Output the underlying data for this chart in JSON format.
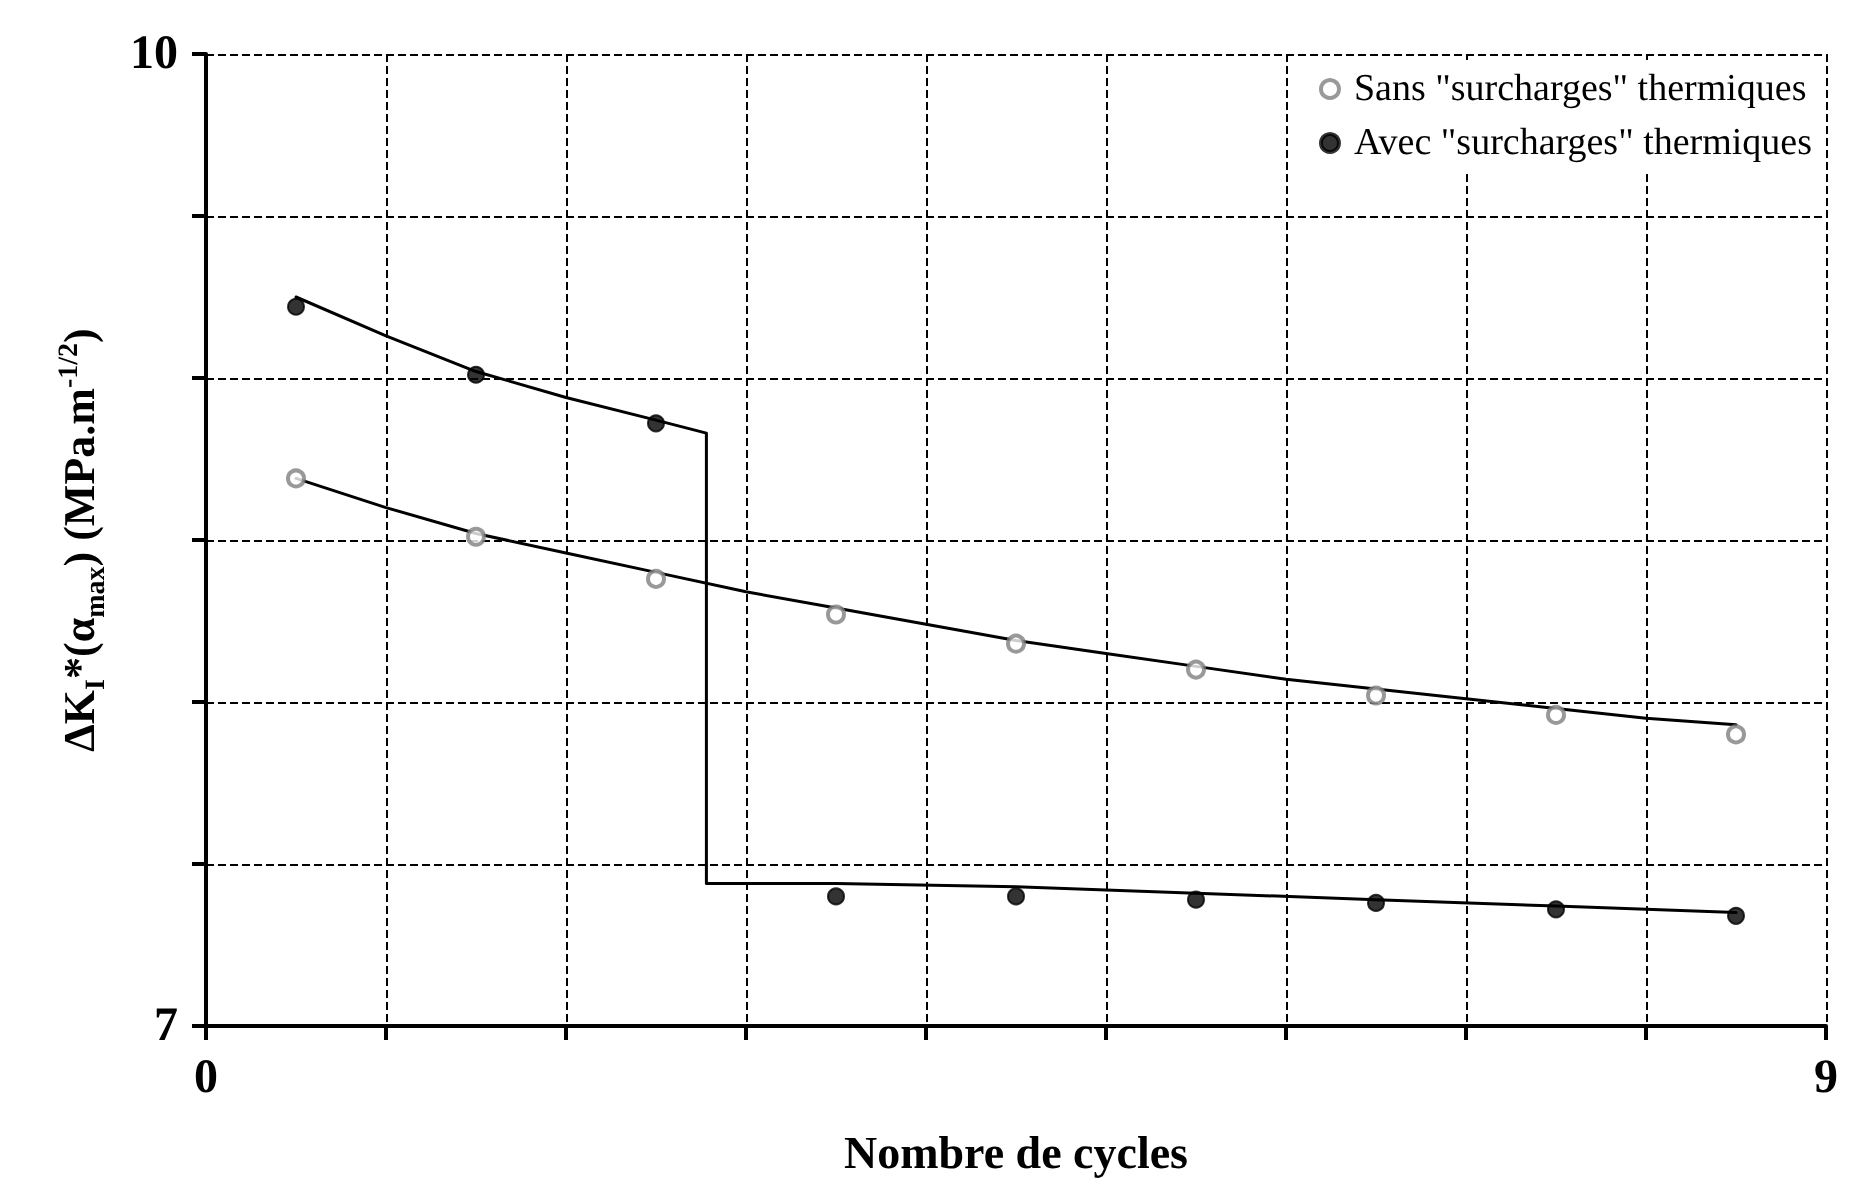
{
  "chart_data": {
    "type": "scatter",
    "xlabel": "Nombre de cycles",
    "ylabel": "ΔK$_{I}$*(α$_{max}$)  (MPa.m$^{-1/2}$)",
    "xlim": [
      0,
      9
    ],
    "ylim": [
      7,
      10
    ],
    "xticks": [
      0,
      {
        "value": 1,
        "label": null
      },
      {
        "value": 2,
        "label": null
      },
      {
        "value": 3,
        "label": null
      },
      {
        "value": 4,
        "label": null
      },
      {
        "value": 5,
        "label": null
      },
      {
        "value": 6,
        "label": null
      },
      {
        "value": 7,
        "label": null
      },
      {
        "value": 8,
        "label": null
      },
      9
    ],
    "yticks": [
      7,
      {
        "value": 7.5,
        "label": null
      },
      {
        "value": 8,
        "label": null
      },
      {
        "value": 8.5,
        "label": null
      },
      {
        "value": 9,
        "label": null
      },
      {
        "value": 9.5,
        "label": null
      },
      10
    ],
    "grid": true,
    "legend": "top right",
    "marker": "circle",
    "series": [
      {
        "name": "Sans \"surcharges\" thermiques",
        "color": "#7f7f7f",
        "x": [
          0.5,
          1.5,
          2.5,
          3.5,
          4.5,
          5.5,
          6.5,
          7.5,
          8.5
        ],
        "values": [
          8.69,
          8.51,
          8.38,
          8.27,
          8.18,
          8.1,
          8.02,
          7.96,
          7.9
        ]
      },
      {
        "name": "Avec \"surcharges\" thermiques",
        "color": "#000000",
        "x": [
          0.5,
          1.5,
          2.5,
          3.5,
          4.5,
          5.5,
          6.5,
          7.5,
          8.5
        ],
        "values": [
          9.22,
          9.01,
          8.86,
          7.4,
          7.4,
          7.39,
          7.38,
          7.36,
          7.34
        ]
      },
      {
        "type": "line",
        "color": "#000000",
        "marker": "none",
        "x": [
          0.5,
          1,
          1.5,
          2,
          2.5,
          3,
          3.5,
          4,
          4.5,
          5,
          5.5,
          6,
          6.5,
          7,
          7.5,
          8,
          8.5
        ],
        "values": [
          8.69,
          8.6,
          8.52,
          8.46,
          8.4,
          8.34,
          8.29,
          8.24,
          8.19,
          8.15,
          8.11,
          8.07,
          8.04,
          8.01,
          7.98,
          7.95,
          7.93
        ]
      },
      {
        "type": "line",
        "color": "#000000",
        "marker": "none",
        "x": [
          0.5,
          1,
          1.5,
          2,
          2.5,
          2.78,
          2.78,
          3.5,
          4.5,
          5.5,
          6.5,
          7.5,
          8.5
        ],
        "values": [
          9.25,
          9.13,
          9.02,
          8.94,
          8.87,
          8.83,
          7.44,
          7.44,
          7.43,
          7.41,
          7.39,
          7.37,
          7.35
        ]
      }
    ]
  }
}
